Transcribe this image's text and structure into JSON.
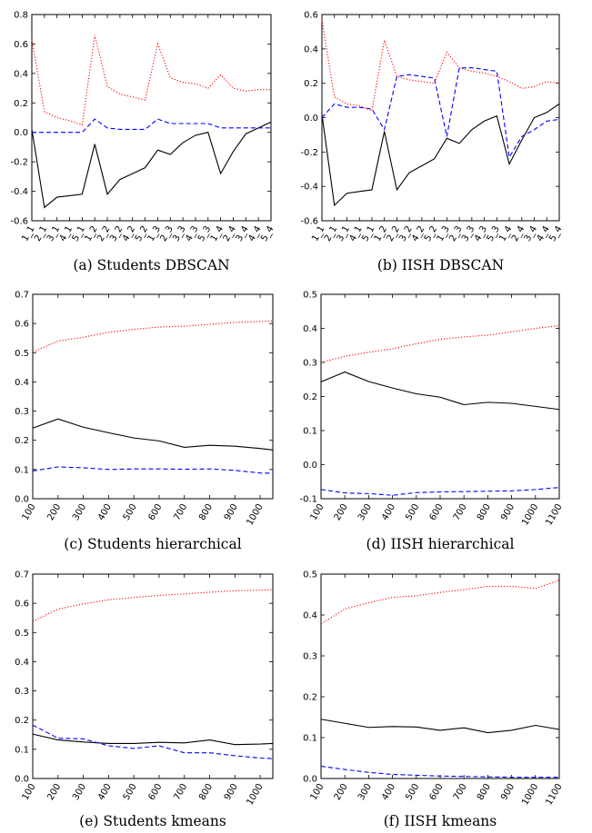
{
  "figure": {
    "colors": {
      "black": "#000000",
      "blue": "#0000ff",
      "red": "#ff0000"
    }
  },
  "chart_data": [
    {
      "type": "line",
      "caption": "(a) Students DBSCAN",
      "x": [
        "1_1",
        "2_1",
        "3_1",
        "4_1",
        "5_1",
        "1_2",
        "2_2",
        "3_2",
        "4_2",
        "5_2",
        "1_3",
        "2_3",
        "3_3",
        "4_3",
        "5_3",
        "1_4",
        "2_4",
        "3_4",
        "4_4",
        "5_4"
      ],
      "ylim": [
        -0.6,
        0.8
      ],
      "yticks": [
        "-0.6",
        "-0.4",
        "-0.2",
        "0.0",
        "0.2",
        "0.4",
        "0.6",
        "0.8"
      ],
      "series": [
        {
          "color": "#000000",
          "style": "solid",
          "values": [
            0.02,
            -0.51,
            -0.44,
            -0.43,
            -0.42,
            -0.08,
            -0.42,
            -0.32,
            -0.28,
            -0.24,
            -0.12,
            -0.15,
            -0.07,
            -0.02,
            0.0,
            -0.28,
            -0.13,
            -0.01,
            0.03,
            0.07
          ]
        },
        {
          "color": "#0000ff",
          "style": "dashed",
          "values": [
            0.0,
            0.0,
            0.0,
            0.0,
            0.0,
            0.09,
            0.03,
            0.02,
            0.02,
            0.02,
            0.09,
            0.06,
            0.06,
            0.06,
            0.06,
            0.03,
            0.03,
            0.03,
            0.03,
            0.03
          ]
        },
        {
          "color": "#ff0000",
          "style": "dotted",
          "values": [
            0.63,
            0.14,
            0.1,
            0.08,
            0.05,
            0.66,
            0.31,
            0.26,
            0.24,
            0.22,
            0.6,
            0.37,
            0.34,
            0.33,
            0.3,
            0.39,
            0.3,
            0.28,
            0.29,
            0.29
          ]
        }
      ]
    },
    {
      "type": "line",
      "caption": "(b) IISH DBSCAN",
      "x": [
        "1_1",
        "2_1",
        "3_1",
        "4_1",
        "5_1",
        "1_2",
        "2_2",
        "3_2",
        "4_2",
        "5_2",
        "1_3",
        "2_3",
        "3_3",
        "4_3",
        "5_3",
        "1_4",
        "2_4",
        "3_4",
        "4_4",
        "5_4"
      ],
      "ylim": [
        -0.6,
        0.6
      ],
      "yticks": [
        "-0.6",
        "-0.4",
        "-0.2",
        "0.0",
        "0.2",
        "0.4",
        "0.6"
      ],
      "series": [
        {
          "color": "#000000",
          "style": "solid",
          "values": [
            0.02,
            -0.51,
            -0.44,
            -0.43,
            -0.42,
            -0.08,
            -0.42,
            -0.32,
            -0.28,
            -0.24,
            -0.12,
            -0.15,
            -0.07,
            -0.02,
            0.01,
            -0.27,
            -0.13,
            0.0,
            0.03,
            0.08
          ]
        },
        {
          "color": "#0000ff",
          "style": "dashed",
          "values": [
            0.0,
            0.08,
            0.06,
            0.06,
            0.05,
            -0.07,
            0.24,
            0.25,
            0.24,
            0.23,
            -0.11,
            0.29,
            0.29,
            0.28,
            0.27,
            -0.23,
            -0.11,
            -0.07,
            -0.02,
            -0.01
          ]
        },
        {
          "color": "#ff0000",
          "style": "dotted",
          "values": [
            0.57,
            0.12,
            0.08,
            0.07,
            0.04,
            0.45,
            0.24,
            0.22,
            0.21,
            0.2,
            0.38,
            0.29,
            0.27,
            0.26,
            0.24,
            0.21,
            0.17,
            0.18,
            0.21,
            0.2
          ]
        }
      ]
    },
    {
      "type": "line",
      "caption": "(c) Students hierarchical",
      "x": [
        100,
        200,
        300,
        400,
        500,
        600,
        700,
        800,
        900,
        1000,
        1050
      ],
      "xticks": [
        "100",
        "200",
        "300",
        "400",
        "500",
        "600",
        "700",
        "800",
        "900",
        "1000"
      ],
      "xlim": [
        100,
        1050
      ],
      "ylim": [
        0.0,
        0.7
      ],
      "yticks": [
        "0.0",
        "0.1",
        "0.2",
        "0.3",
        "0.4",
        "0.5",
        "0.6",
        "0.7"
      ],
      "series": [
        {
          "color": "#000000",
          "style": "solid",
          "values": [
            0.242,
            0.273,
            0.245,
            0.226,
            0.208,
            0.198,
            0.176,
            0.183,
            0.18,
            0.172,
            0.167
          ]
        },
        {
          "color": "#0000ff",
          "style": "dashed",
          "values": [
            0.095,
            0.109,
            0.106,
            0.1,
            0.102,
            0.102,
            0.101,
            0.102,
            0.097,
            0.088,
            0.087
          ]
        },
        {
          "color": "#ff0000",
          "style": "dotted",
          "values": [
            0.502,
            0.54,
            0.553,
            0.57,
            0.58,
            0.588,
            0.591,
            0.597,
            0.604,
            0.607,
            0.609
          ]
        }
      ]
    },
    {
      "type": "line",
      "caption": "(d) IISH hierarchical",
      "x": [
        100,
        200,
        300,
        400,
        500,
        600,
        700,
        800,
        900,
        1000,
        1100
      ],
      "xticks": [
        "100",
        "200",
        "300",
        "400",
        "500",
        "600",
        "700",
        "800",
        "900",
        "1000",
        "1100"
      ],
      "xlim": [
        100,
        1100
      ],
      "ylim": [
        -0.1,
        0.5
      ],
      "yticks": [
        "-0.1",
        "0.0",
        "0.1",
        "0.2",
        "0.3",
        "0.4",
        "0.5"
      ],
      "series": [
        {
          "color": "#000000",
          "style": "solid",
          "values": [
            0.243,
            0.272,
            0.244,
            0.225,
            0.208,
            0.198,
            0.176,
            0.183,
            0.18,
            0.171,
            0.162
          ]
        },
        {
          "color": "#0000ff",
          "style": "dashed",
          "values": [
            -0.073,
            -0.083,
            -0.085,
            -0.09,
            -0.082,
            -0.08,
            -0.079,
            -0.078,
            -0.077,
            -0.073,
            -0.067
          ]
        },
        {
          "color": "#ff0000",
          "style": "dotted",
          "values": [
            0.3,
            0.318,
            0.33,
            0.34,
            0.355,
            0.368,
            0.375,
            0.38,
            0.39,
            0.4,
            0.408
          ]
        }
      ]
    },
    {
      "type": "line",
      "caption": "(e) Students kmeans",
      "x": [
        100,
        200,
        300,
        400,
        500,
        600,
        700,
        800,
        900,
        1000,
        1050
      ],
      "xticks": [
        "100",
        "200",
        "300",
        "400",
        "500",
        "600",
        "700",
        "800",
        "900",
        "1000"
      ],
      "xlim": [
        100,
        1050
      ],
      "ylim": [
        0.0,
        0.7
      ],
      "yticks": [
        "0.0",
        "0.1",
        "0.2",
        "0.3",
        "0.4",
        "0.5",
        "0.6",
        "0.7"
      ],
      "series": [
        {
          "color": "#000000",
          "style": "solid",
          "values": [
            0.152,
            0.132,
            0.125,
            0.12,
            0.12,
            0.124,
            0.122,
            0.132,
            0.116,
            0.118,
            0.12
          ]
        },
        {
          "color": "#0000ff",
          "style": "dashed",
          "values": [
            0.183,
            0.138,
            0.136,
            0.112,
            0.103,
            0.112,
            0.088,
            0.088,
            0.078,
            0.07,
            0.068
          ]
        },
        {
          "color": "#ff0000",
          "style": "dotted",
          "values": [
            0.538,
            0.58,
            0.598,
            0.612,
            0.62,
            0.627,
            0.632,
            0.638,
            0.643,
            0.645,
            0.647
          ]
        }
      ]
    },
    {
      "type": "line",
      "caption": "(f) IISH kmeans",
      "x": [
        100,
        200,
        300,
        400,
        500,
        600,
        700,
        800,
        900,
        1000,
        1100
      ],
      "xticks": [
        "100",
        "200",
        "300",
        "400",
        "500",
        "600",
        "700",
        "800",
        "900",
        "1000",
        "1100"
      ],
      "xlim": [
        100,
        1100
      ],
      "ylim": [
        0.0,
        0.5
      ],
      "yticks": [
        "0.0",
        "0.1",
        "0.2",
        "0.3",
        "0.4",
        "0.5"
      ],
      "series": [
        {
          "color": "#000000",
          "style": "solid",
          "values": [
            0.145,
            0.135,
            0.125,
            0.127,
            0.126,
            0.118,
            0.124,
            0.112,
            0.118,
            0.13,
            0.12
          ]
        },
        {
          "color": "#0000ff",
          "style": "dashed",
          "values": [
            0.03,
            0.022,
            0.015,
            0.01,
            0.008,
            0.006,
            0.005,
            0.004,
            0.003,
            0.003,
            0.003
          ]
        },
        {
          "color": "#ff0000",
          "style": "dotted",
          "values": [
            0.378,
            0.415,
            0.43,
            0.443,
            0.447,
            0.455,
            0.462,
            0.47,
            0.47,
            0.465,
            0.485
          ]
        }
      ]
    }
  ]
}
